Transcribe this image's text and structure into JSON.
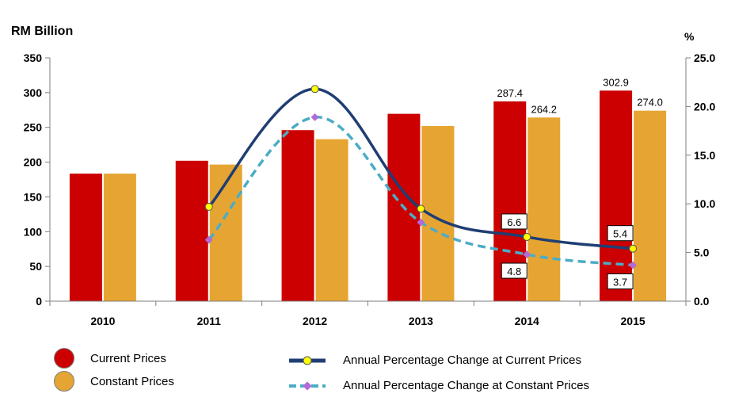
{
  "chart_data": {
    "type": "bar",
    "y_unit_left": "RM Billion",
    "y_unit_right": "%",
    "categories": [
      "2010",
      "2011",
      "2012",
      "2013",
      "2014",
      "2015"
    ],
    "ylim_left": [
      0,
      350
    ],
    "yticks_left": [
      "0",
      "50",
      "100",
      "150",
      "200",
      "250",
      "300",
      "350"
    ],
    "ylim_right": [
      0,
      25
    ],
    "yticks_right": [
      "0.0",
      "5.0",
      "10.0",
      "15.0",
      "20.0",
      "25.0"
    ],
    "bar_series": [
      {
        "name": "Current Prices",
        "color": "#cc0000",
        "values": [
          183.5,
          202,
          246,
          269.5,
          287.4,
          302.9
        ],
        "labels": [
          "",
          "",
          "",
          "",
          "287.4",
          "302.9"
        ]
      },
      {
        "name": "Constant Prices",
        "color": "#e6a532",
        "values": [
          183.5,
          196.5,
          233,
          252,
          264.2,
          274.0
        ],
        "labels": [
          "",
          "",
          "",
          "",
          "264.2",
          "274.0"
        ]
      }
    ],
    "line_series": [
      {
        "name": "Annual Percentage Change at Current Prices",
        "color": "#1f3e73",
        "marker_color": "#ffff00",
        "style": "solid",
        "values": [
          null,
          9.7,
          21.8,
          9.5,
          6.6,
          5.4
        ],
        "labels": [
          "",
          "",
          "",
          "",
          "6.6",
          "5.4"
        ]
      },
      {
        "name": "Annual Percentage Change at Constant Prices",
        "color": "#4bacc6",
        "marker_color": "#b36ad9",
        "style": "dashed",
        "values": [
          null,
          6.3,
          18.9,
          8.1,
          4.8,
          3.7
        ],
        "labels": [
          "",
          "",
          "",
          "",
          "4.8",
          "3.7"
        ]
      }
    ],
    "grid": false
  },
  "legend": {
    "current_prices": "Current Prices",
    "constant_prices": "Constant Prices",
    "pct_current": "Annual Percentage Change at Current Prices",
    "pct_constant": "Annual Percentage Change at Constant Prices"
  }
}
